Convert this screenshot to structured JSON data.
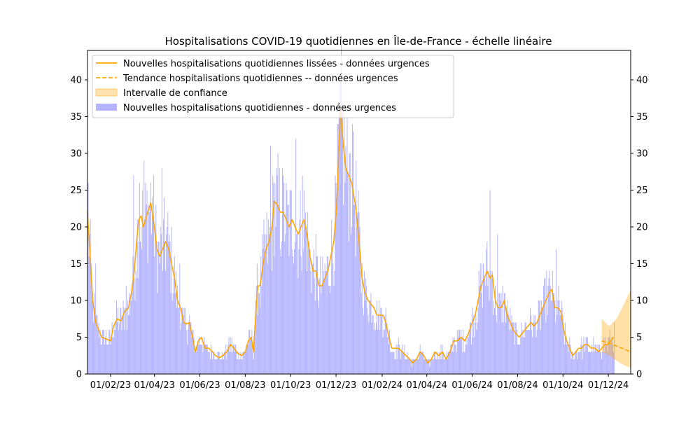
{
  "chart_data": {
    "type": "bar",
    "title": "Hospitalisations COVID-19 quotidiennes en Île-de-France - échelle linéaire",
    "xlabel": "",
    "ylabel": "",
    "x_range": [
      "2023-01-01",
      "2024-12-31"
    ],
    "ylim": [
      0,
      44
    ],
    "y_ticks": [
      0,
      5,
      10,
      15,
      20,
      25,
      30,
      35,
      40
    ],
    "x_ticks": [
      {
        "date": "2023-02-01",
        "label": "01/02/23"
      },
      {
        "date": "2023-04-01",
        "label": "01/04/23"
      },
      {
        "date": "2023-06-01",
        "label": "01/06/23"
      },
      {
        "date": "2023-08-01",
        "label": "01/08/23"
      },
      {
        "date": "2023-10-01",
        "label": "01/10/23"
      },
      {
        "date": "2023-12-01",
        "label": "01/12/23"
      },
      {
        "date": "2024-02-01",
        "label": "01/02/24"
      },
      {
        "date": "2024-04-01",
        "label": "01/04/24"
      },
      {
        "date": "2024-06-01",
        "label": "01/06/24"
      },
      {
        "date": "2024-08-01",
        "label": "01/08/24"
      },
      {
        "date": "2024-10-01",
        "label": "01/10/24"
      },
      {
        "date": "2024-12-01",
        "label": "01/12/24"
      }
    ],
    "grid": false,
    "legend_position": "top-left",
    "legend": [
      {
        "label": "Nouvelles hospitalisations quotidiennes lissées - données urgences",
        "kind": "line",
        "color": "#FFA500"
      },
      {
        "label": "Tendance hospitalisations quotidiennes -- données urgences",
        "kind": "dashed",
        "color": "#FFA500"
      },
      {
        "label": "Intervalle de confiance",
        "kind": "band",
        "color": "#FFA500"
      },
      {
        "label": "Nouvelles hospitalisations quotidiennes - données urgences",
        "kind": "bar",
        "color": "#B3B3FF"
      }
    ],
    "smoothed": {
      "name": "Nouvelles hospitalisations quotidiennes lissées - données urgences",
      "color": "#FFA500",
      "points": [
        [
          "2023-01-01",
          22
        ],
        [
          "2023-01-04",
          17
        ],
        [
          "2023-01-08",
          10
        ],
        [
          "2023-01-12",
          7
        ],
        [
          "2023-01-16",
          6
        ],
        [
          "2023-01-20",
          5
        ],
        [
          "2023-01-25",
          4.8
        ],
        [
          "2023-02-01",
          4.5
        ],
        [
          "2023-02-05",
          6.5
        ],
        [
          "2023-02-10",
          7.5
        ],
        [
          "2023-02-15",
          7.2
        ],
        [
          "2023-02-20",
          8.5
        ],
        [
          "2023-02-25",
          9
        ],
        [
          "2023-03-01",
          11
        ],
        [
          "2023-03-05",
          14
        ],
        [
          "2023-03-08",
          18
        ],
        [
          "2023-03-11",
          21
        ],
        [
          "2023-03-14",
          21.5
        ],
        [
          "2023-03-17",
          20
        ],
        [
          "2023-03-20",
          21
        ],
        [
          "2023-03-23",
          22
        ],
        [
          "2023-03-27",
          23.3
        ],
        [
          "2023-04-01",
          20
        ],
        [
          "2023-04-04",
          17
        ],
        [
          "2023-04-08",
          16
        ],
        [
          "2023-04-12",
          17
        ],
        [
          "2023-04-16",
          18
        ],
        [
          "2023-04-20",
          17
        ],
        [
          "2023-04-24",
          15
        ],
        [
          "2023-04-28",
          13
        ],
        [
          "2023-05-02",
          10
        ],
        [
          "2023-05-06",
          9
        ],
        [
          "2023-05-10",
          7
        ],
        [
          "2023-05-14",
          6.8
        ],
        [
          "2023-05-18",
          7
        ],
        [
          "2023-05-22",
          5
        ],
        [
          "2023-05-26",
          3
        ],
        [
          "2023-05-30",
          4.5
        ],
        [
          "2023-06-03",
          5
        ],
        [
          "2023-06-08",
          3.5
        ],
        [
          "2023-06-13",
          3.5
        ],
        [
          "2023-06-18",
          3
        ],
        [
          "2023-06-22",
          2.5
        ],
        [
          "2023-06-27",
          2.2
        ],
        [
          "2023-07-02",
          2.5
        ],
        [
          "2023-07-07",
          3
        ],
        [
          "2023-07-12",
          4
        ],
        [
          "2023-07-17",
          3.5
        ],
        [
          "2023-07-22",
          2.8
        ],
        [
          "2023-07-27",
          2.5
        ],
        [
          "2023-08-01",
          3
        ],
        [
          "2023-08-05",
          4.5
        ],
        [
          "2023-08-09",
          5
        ],
        [
          "2023-08-12",
          3
        ],
        [
          "2023-08-15",
          8
        ],
        [
          "2023-08-18",
          12
        ],
        [
          "2023-08-21",
          12
        ],
        [
          "2023-08-25",
          15
        ],
        [
          "2023-08-29",
          17
        ],
        [
          "2023-09-02",
          18
        ],
        [
          "2023-09-06",
          20
        ],
        [
          "2023-09-09",
          23.5
        ],
        [
          "2023-09-13",
          23
        ],
        [
          "2023-09-17",
          22
        ],
        [
          "2023-09-21",
          22
        ],
        [
          "2023-09-25",
          21
        ],
        [
          "2023-09-29",
          20
        ],
        [
          "2023-10-03",
          21
        ],
        [
          "2023-10-07",
          20
        ],
        [
          "2023-10-11",
          19
        ],
        [
          "2023-10-15",
          20
        ],
        [
          "2023-10-19",
          21
        ],
        [
          "2023-10-23",
          19
        ],
        [
          "2023-10-27",
          16
        ],
        [
          "2023-10-31",
          14
        ],
        [
          "2023-11-04",
          14
        ],
        [
          "2023-11-08",
          12
        ],
        [
          "2023-11-12",
          12
        ],
        [
          "2023-11-16",
          13
        ],
        [
          "2023-11-20",
          14
        ],
        [
          "2023-11-24",
          16
        ],
        [
          "2023-11-28",
          18
        ],
        [
          "2023-12-02",
          23
        ],
        [
          "2023-12-05",
          31
        ],
        [
          "2023-12-07",
          36
        ],
        [
          "2023-12-10",
          32
        ],
        [
          "2023-12-14",
          28
        ],
        [
          "2023-12-18",
          27
        ],
        [
          "2023-12-22",
          26
        ],
        [
          "2023-12-27",
          23
        ],
        [
          "2024-01-01",
          18
        ],
        [
          "2024-01-05",
          13
        ],
        [
          "2024-01-09",
          11
        ],
        [
          "2024-01-13",
          10
        ],
        [
          "2024-01-17",
          9.5
        ],
        [
          "2024-01-21",
          9
        ],
        [
          "2024-01-25",
          8
        ],
        [
          "2024-01-29",
          8
        ],
        [
          "2024-02-02",
          8
        ],
        [
          "2024-02-06",
          7
        ],
        [
          "2024-02-10",
          5
        ],
        [
          "2024-02-14",
          3.5
        ],
        [
          "2024-02-18",
          3.5
        ],
        [
          "2024-02-23",
          3.5
        ],
        [
          "2024-02-28",
          3
        ],
        [
          "2024-03-04",
          2.5
        ],
        [
          "2024-03-09",
          2
        ],
        [
          "2024-03-13",
          1.5
        ],
        [
          "2024-03-18",
          2
        ],
        [
          "2024-03-23",
          3
        ],
        [
          "2024-03-28",
          2.5
        ],
        [
          "2024-04-02",
          1.5
        ],
        [
          "2024-04-07",
          2
        ],
        [
          "2024-04-12",
          3
        ],
        [
          "2024-04-17",
          2.5
        ],
        [
          "2024-04-22",
          3
        ],
        [
          "2024-04-27",
          2
        ],
        [
          "2024-05-02",
          3
        ],
        [
          "2024-05-07",
          4.5
        ],
        [
          "2024-05-12",
          4.5
        ],
        [
          "2024-05-17",
          5
        ],
        [
          "2024-05-22",
          4.5
        ],
        [
          "2024-05-27",
          5.5
        ],
        [
          "2024-06-01",
          7
        ],
        [
          "2024-06-05",
          8
        ],
        [
          "2024-06-09",
          10
        ],
        [
          "2024-06-13",
          12
        ],
        [
          "2024-06-17",
          13
        ],
        [
          "2024-06-21",
          14
        ],
        [
          "2024-06-25",
          13
        ],
        [
          "2024-06-28",
          13.5
        ],
        [
          "2024-07-02",
          10
        ],
        [
          "2024-07-06",
          9
        ],
        [
          "2024-07-10",
          9
        ],
        [
          "2024-07-14",
          10
        ],
        [
          "2024-07-18",
          8
        ],
        [
          "2024-07-22",
          7
        ],
        [
          "2024-07-26",
          6
        ],
        [
          "2024-07-30",
          5.5
        ],
        [
          "2024-08-03",
          5
        ],
        [
          "2024-08-07",
          5.5
        ],
        [
          "2024-08-11",
          6
        ],
        [
          "2024-08-15",
          6.5
        ],
        [
          "2024-08-19",
          7
        ],
        [
          "2024-08-23",
          6.5
        ],
        [
          "2024-08-27",
          7
        ],
        [
          "2024-08-31",
          8
        ],
        [
          "2024-09-04",
          9
        ],
        [
          "2024-09-08",
          10
        ],
        [
          "2024-09-12",
          11
        ],
        [
          "2024-09-16",
          11.5
        ],
        [
          "2024-09-20",
          9
        ],
        [
          "2024-09-24",
          9
        ],
        [
          "2024-09-28",
          8.5
        ],
        [
          "2024-10-02",
          6
        ],
        [
          "2024-10-06",
          4.5
        ],
        [
          "2024-10-10",
          3.5
        ],
        [
          "2024-10-14",
          2.5
        ],
        [
          "2024-10-18",
          3
        ],
        [
          "2024-10-22",
          3.5
        ],
        [
          "2024-10-26",
          3.5
        ],
        [
          "2024-10-30",
          4
        ],
        [
          "2024-11-03",
          4
        ],
        [
          "2024-11-08",
          3.5
        ],
        [
          "2024-11-13",
          3.5
        ],
        [
          "2024-11-18",
          3
        ],
        [
          "2024-11-22",
          3.5
        ],
        [
          "2024-11-26",
          4
        ],
        [
          "2024-11-30",
          4
        ],
        [
          "2024-12-04",
          4.5
        ],
        [
          "2024-12-08",
          5
        ]
      ]
    },
    "trend": {
      "name": "Tendance hospitalisations quotidiennes -- données urgences",
      "color": "#FFA500",
      "points": [
        [
          "2024-11-22",
          4.5
        ],
        [
          "2024-12-02",
          4.2
        ],
        [
          "2024-12-12",
          3.8
        ],
        [
          "2024-12-22",
          3.4
        ],
        [
          "2024-12-31",
          3.0
        ]
      ]
    },
    "confidence_interval": {
      "name": "Intervalle de confiance",
      "color": "#FFA500",
      "upper": [
        [
          "2024-11-22",
          7.5
        ],
        [
          "2024-12-02",
          6.5
        ],
        [
          "2024-12-12",
          7.5
        ],
        [
          "2024-12-22",
          9.5
        ],
        [
          "2024-12-31",
          11.5
        ]
      ],
      "lower": [
        [
          "2024-11-22",
          3.0
        ],
        [
          "2024-12-02",
          2.5
        ],
        [
          "2024-12-12",
          1.8
        ],
        [
          "2024-12-22",
          1.2
        ],
        [
          "2024-12-31",
          0.8
        ]
      ]
    },
    "daily": {
      "name": "Nouvelles hospitalisations quotidiennes - données urgences",
      "color": "#B3B3FF",
      "start": "2023-01-01",
      "end": "2024-12-09",
      "points": [
        [
          "2023-01-02",
          26
        ],
        [
          "2023-01-07",
          10
        ],
        [
          "2023-01-12",
          15
        ],
        [
          "2023-02-22",
          12
        ],
        [
          "2023-03-04",
          27
        ],
        [
          "2023-03-12",
          26
        ],
        [
          "2023-03-18",
          29
        ],
        [
          "2023-03-29",
          24
        ],
        [
          "2023-04-11",
          28
        ],
        [
          "2023-04-21",
          19
        ],
        [
          "2023-05-05",
          15
        ],
        [
          "2023-08-17",
          15
        ],
        [
          "2023-09-04",
          31
        ],
        [
          "2023-09-21",
          27
        ],
        [
          "2023-10-08",
          32
        ],
        [
          "2023-10-17",
          27
        ],
        [
          "2023-12-07",
          40
        ],
        [
          "2023-12-20",
          30
        ],
        [
          "2023-12-23",
          34
        ],
        [
          "2024-06-25",
          25
        ],
        [
          "2024-07-05",
          19
        ],
        [
          "2024-09-22",
          17
        ]
      ]
    }
  }
}
